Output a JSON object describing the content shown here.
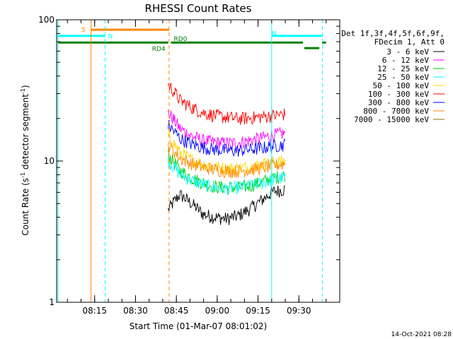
{
  "chart_data": {
    "type": "line",
    "title": "RHESSI Count Rates",
    "xlabel": "Start Time (01-Mar-07 08:01:02)",
    "ylabel": "Count Rate (s⁻¹ detector segment⁻¹)",
    "ylabel_main": "Count Rate (s",
    "ylabel_mid": " detector segment",
    "ylabel_end": ")",
    "ylabel_sup": "-1",
    "yscale": "log",
    "xlim": [
      "08:01:02",
      "09:45:00"
    ],
    "ylim": [
      1,
      100
    ],
    "x_ticks": [
      "08:15",
      "08:30",
      "08:45",
      "09:00",
      "09:15",
      "09:30"
    ],
    "y_ticks": [
      "1",
      "10",
      "100"
    ],
    "legend_header": [
      "Det 1f,3f,4f,5f,6f,9f,",
      "FDecim 1, Att 0"
    ],
    "legend_position": "right",
    "series": [
      {
        "name": "3 - 6 keV",
        "color": "#000000",
        "start": "08:42",
        "end": "09:25",
        "values": [
          4.5,
          5.8,
          5.0,
          4.2,
          4.0,
          3.9,
          4.1,
          4.6,
          5.3,
          6.1,
          6.3
        ]
      },
      {
        "name": "6 - 12 keV",
        "color": "#ff00ff",
        "start": "08:42",
        "end": "09:25",
        "values": [
          22,
          17,
          15,
          14,
          13.6,
          13.4,
          13.5,
          14,
          14.6,
          15.3,
          15.8
        ]
      },
      {
        "name": "12 - 25 keV",
        "color": "#00cc00",
        "start": "08:42",
        "end": "09:25",
        "values": [
          11,
          8.6,
          7.6,
          7.0,
          6.6,
          6.5,
          6.5,
          6.7,
          7.1,
          7.6,
          8.0
        ]
      },
      {
        "name": "25 - 50 keV",
        "color": "#00ffff",
        "start": "08:42",
        "end": "09:25",
        "values": [
          10,
          8.1,
          7.3,
          6.8,
          6.5,
          6.4,
          6.5,
          6.7,
          7.0,
          7.4,
          7.7
        ]
      },
      {
        "name": "50 - 100 keV",
        "color": "#ffd700",
        "start": "08:42",
        "end": "09:25",
        "values": [
          15,
          11.5,
          10.2,
          9.5,
          9.1,
          8.9,
          8.9,
          9.1,
          9.5,
          9.8,
          10.0
        ]
      },
      {
        "name": "100 - 300 keV",
        "color": "#ff0000",
        "start": "08:42",
        "end": "09:25",
        "values": [
          35,
          27,
          24,
          22,
          21,
          20.4,
          20,
          20.2,
          20.6,
          21,
          21.5
        ]
      },
      {
        "name": "300 - 800 keV",
        "color": "#0000ff",
        "start": "08:42",
        "end": "09:25",
        "values": [
          18,
          14.5,
          13.2,
          12.5,
          12.1,
          11.9,
          11.9,
          12.1,
          12.4,
          12.8,
          13.1
        ]
      },
      {
        "name": "800 - 7000 keV",
        "color": "#ff8800",
        "start": "08:42",
        "end": "09:25",
        "values": [
          13,
          10.5,
          9.6,
          9.0,
          8.7,
          8.5,
          8.5,
          8.7,
          9.0,
          9.3,
          9.6
        ]
      },
      {
        "name": "7000 - 15000 keV",
        "color": "#996600",
        "start": "08:42",
        "end": "09:25",
        "values": []
      }
    ],
    "vertical_lines": [
      {
        "t": "08:01:30",
        "color": "#00ffff",
        "style": "solid"
      },
      {
        "t": "08:13:40",
        "color": "#ff8800",
        "style": "solid"
      },
      {
        "t": "08:18:50",
        "color": "#00ffff",
        "style": "dashed"
      },
      {
        "t": "08:42:20",
        "color": "#ff8800",
        "style": "dashed"
      },
      {
        "t": "09:20:00",
        "color": "#00ffff",
        "style": "solid"
      },
      {
        "t": "09:38:40",
        "color": "#00ffff",
        "style": "dashed"
      }
    ],
    "bands": [
      {
        "label": "S",
        "color": "#ff8800",
        "t0": "08:13:40",
        "t1": "08:42:20",
        "y": 85,
        "label_side": "left"
      },
      {
        "label": "N",
        "color": "#00ffff",
        "t0": "08:01:30",
        "t1": "08:18:50",
        "y": 77,
        "label_side": "right"
      },
      {
        "label": "N",
        "color": "#00ffff",
        "t0": "09:20:00",
        "t1": "09:38:40",
        "y": 77,
        "label_side": "none"
      },
      {
        "label": "RD4",
        "color": "#008000",
        "t0": "08:01:30",
        "t1": "08:42:00",
        "y": 69,
        "label_side": "below-right"
      },
      {
        "label": "RD0",
        "color": "#008000",
        "t0": "08:43:00",
        "t1": "09:31:30",
        "y": 69,
        "label_side": "above-left"
      },
      {
        "label": "",
        "color": "#008000",
        "t0": "09:32:00",
        "t1": "09:37:30",
        "y": 63,
        "label_side": "none"
      },
      {
        "label": "",
        "color": "#008000",
        "t0": "09:38:30",
        "t1": "09:40:00",
        "y": 69,
        "label_side": "none"
      }
    ],
    "grid": false
  },
  "footer": {
    "date_stamp": "14-Oct-2021 08:28"
  }
}
